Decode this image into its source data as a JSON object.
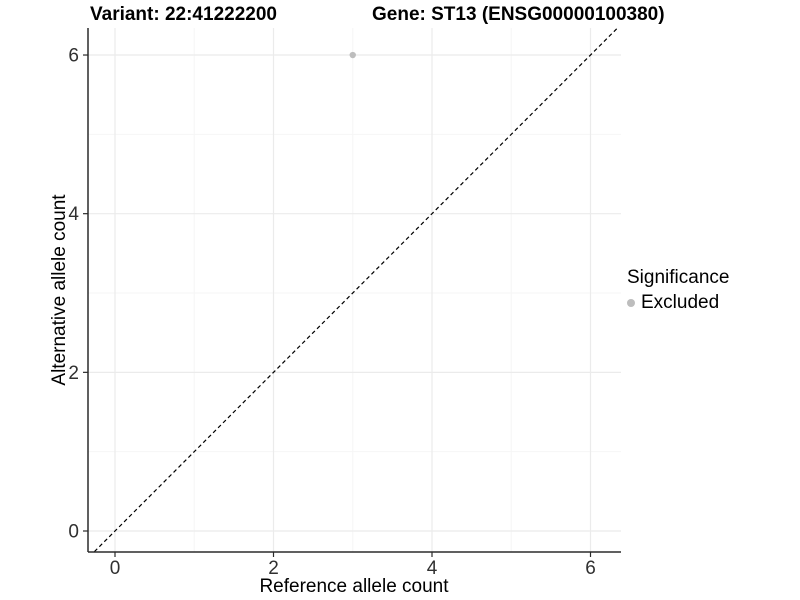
{
  "chart_data": {
    "type": "scatter",
    "titles": {
      "left": "Variant: 22:41222200",
      "right": "Gene: ST13 (ENSG00000100380)"
    },
    "xlabel": "Reference allele count",
    "ylabel": "Alternative allele count",
    "xticks": [
      0,
      2,
      4,
      6
    ],
    "yticks": [
      0,
      2,
      4,
      6
    ],
    "xlim": [
      -0.34,
      6.38
    ],
    "ylim": [
      -0.26,
      6.34
    ],
    "grid": "major+minor",
    "points": [
      {
        "x": 3,
        "y": 6,
        "series": "Excluded"
      }
    ],
    "reference_line": {
      "equation": "y = x",
      "style": "dashed",
      "color": "#000000"
    },
    "legend": {
      "title": "Significance",
      "position": "right",
      "entries": [
        {
          "label": "Excluded",
          "color": "#bdbdbd"
        }
      ]
    },
    "colors": {
      "point": "#bdbdbd",
      "grid_major": "#ebebeb",
      "grid_minor": "#f6f6f6",
      "axis_line": "#2b2b2b",
      "tick_text": "#303030",
      "diagonal": "#000000"
    }
  }
}
